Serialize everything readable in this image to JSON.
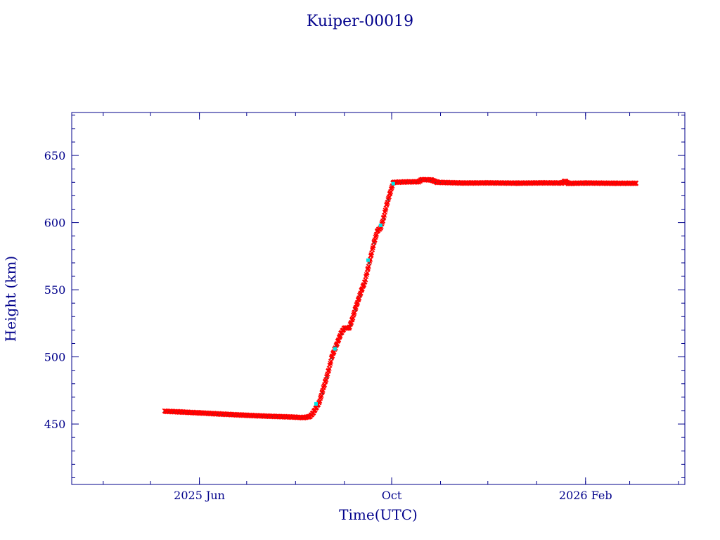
{
  "chart_data": {
    "type": "scatter",
    "title": "Kuiper-00019",
    "xlabel": "Time(UTC)",
    "ylabel": "Height (km)",
    "x_axis": {
      "type": "date",
      "range": [
        "2025-03-12",
        "2026-04-05"
      ],
      "major_ticks": [
        {
          "date": "2025-06-01",
          "label": "2025 Jun"
        },
        {
          "date": "2025-10-01",
          "label": "Oct"
        },
        {
          "date": "2026-02-01",
          "label": "2026 Feb"
        }
      ]
    },
    "ylim": [
      405,
      682
    ],
    "y_major_ticks": [
      450,
      500,
      550,
      600,
      650
    ],
    "y_minor_step": 10,
    "grid": false,
    "colors": {
      "axes": "#00008b",
      "series_main": "#ff0000",
      "series_marker": "#00e5e5",
      "series_cross": "#444444"
    },
    "series": [
      {
        "marker": "cross",
        "color": "#ff0000",
        "points": [
          [
            "2025-05-10",
            459.5
          ],
          [
            "2025-05-20",
            459.0
          ],
          [
            "2025-06-01",
            458.3
          ],
          [
            "2025-06-15",
            457.4
          ],
          [
            "2025-07-01",
            456.5
          ],
          [
            "2025-07-15",
            455.8
          ],
          [
            "2025-07-30",
            455.2
          ],
          [
            "2025-08-06",
            454.8
          ],
          [
            "2025-08-10",
            455.5
          ],
          [
            "2025-08-12",
            458.0
          ],
          [
            "2025-08-14",
            462.0
          ],
          [
            "2025-08-16",
            466.0
          ],
          [
            "2025-08-18",
            474.0
          ],
          [
            "2025-08-20",
            482.0
          ],
          [
            "2025-08-22",
            490.0
          ],
          [
            "2025-08-24",
            500.0
          ],
          [
            "2025-08-26",
            506.0
          ],
          [
            "2025-08-28",
            512.0
          ],
          [
            "2025-08-30",
            518.0
          ],
          [
            "2025-09-01",
            521.5
          ],
          [
            "2025-09-04",
            521.5
          ],
          [
            "2025-09-06",
            528.0
          ],
          [
            "2025-09-08",
            536.0
          ],
          [
            "2025-09-10",
            543.0
          ],
          [
            "2025-09-12",
            550.0
          ],
          [
            "2025-09-14",
            556.0
          ],
          [
            "2025-09-16",
            566.0
          ],
          [
            "2025-09-18",
            576.0
          ],
          [
            "2025-09-20",
            586.0
          ],
          [
            "2025-09-22",
            594.0
          ],
          [
            "2025-09-24",
            596.0
          ],
          [
            "2025-09-26",
            604.0
          ],
          [
            "2025-09-28",
            614.0
          ],
          [
            "2025-09-30",
            622.0
          ],
          [
            "2025-10-02",
            630.0
          ],
          [
            "2025-10-10",
            630.3
          ],
          [
            "2025-10-18",
            630.4
          ],
          [
            "2025-10-20",
            632.0
          ],
          [
            "2025-10-26",
            631.8
          ],
          [
            "2025-10-30",
            630.0
          ],
          [
            "2025-11-15",
            629.5
          ],
          [
            "2025-12-01",
            629.6
          ],
          [
            "2025-12-20",
            629.4
          ],
          [
            "2026-01-05",
            629.6
          ],
          [
            "2026-01-17",
            629.5
          ],
          [
            "2026-01-19",
            631.0
          ],
          [
            "2026-01-21",
            629.2
          ],
          [
            "2026-02-01",
            629.5
          ],
          [
            "2026-02-20",
            629.3
          ],
          [
            "2026-03-05",
            629.3
          ]
        ]
      },
      {
        "marker": "square",
        "color": "#00e5e5",
        "points": [
          [
            "2025-08-14",
            465.0
          ],
          [
            "2025-08-26",
            506.0
          ],
          [
            "2025-09-16",
            572.0
          ],
          [
            "2025-09-24",
            598.0
          ],
          [
            "2025-10-02",
            629.0
          ]
        ]
      }
    ]
  }
}
